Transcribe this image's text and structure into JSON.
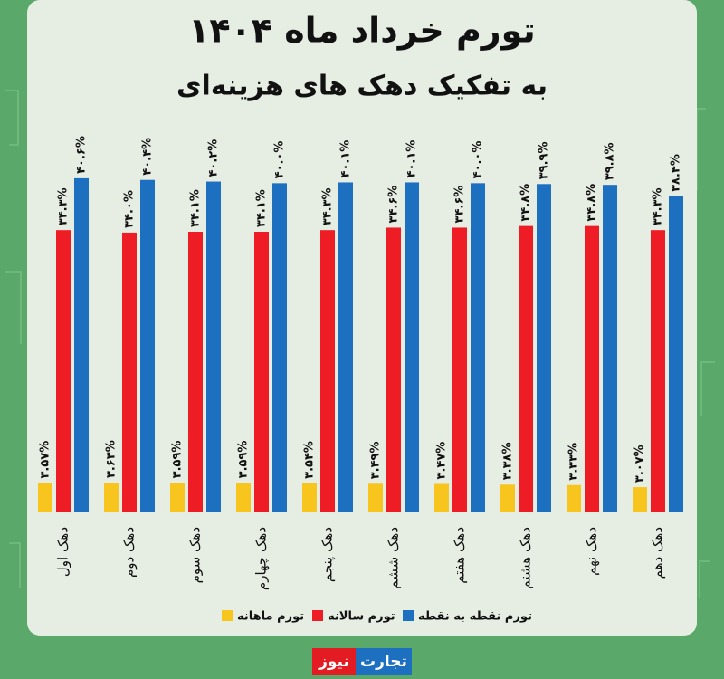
{
  "chart_data": {
    "type": "bar",
    "title": "تورم خرداد ماه ۱۴۰۴",
    "subtitle": "به تفکیک دهک های هزینه‌ای",
    "categories": [
      "دهک اول",
      "دهک دوم",
      "دهک سوم",
      "دهک چهارم",
      "دهک پنجم",
      "دهک ششم",
      "دهک هفتم",
      "دهک هشتم",
      "دهک نهم",
      "دهک دهم"
    ],
    "series": [
      {
        "name": "تورم ماهانه",
        "color": "#f7c51d",
        "values": [
          3.57,
          3.63,
          3.59,
          3.59,
          3.54,
          3.49,
          3.47,
          3.38,
          3.33,
          3.07
        ],
        "value_labels": [
          "۳.۵۷%",
          "۳.۶۳%",
          "۳.۵۹%",
          "۳.۵۹%",
          "۳.۵۴%",
          "۳.۴۹%",
          "۳.۴۷%",
          "۳.۳۸%",
          "۳.۳۳%",
          "۳.۰۷%"
        ]
      },
      {
        "name": "تورم سالانه",
        "color": "#ee1c24",
        "values": [
          34.3,
          34.0,
          34.1,
          34.1,
          34.3,
          34.6,
          34.6,
          34.8,
          34.8,
          34.3
        ],
        "value_labels": [
          "۳۴.۳%",
          "۳۴.۰%",
          "۳۴.۱%",
          "۳۴.۱%",
          "۳۴.۳%",
          "۳۴.۶%",
          "۳۴.۶%",
          "۳۴.۸%",
          "۳۴.۸%",
          "۳۴.۳%"
        ]
      },
      {
        "name": "تورم نقطه به نقطه",
        "color": "#1d6fc0",
        "values": [
          40.6,
          40.4,
          40.2,
          40.0,
          40.1,
          40.1,
          40.0,
          39.9,
          39.8,
          38.4
        ],
        "value_labels": [
          "۴۰.۶%",
          "۴۰.۴%",
          "۴۰.۲%",
          "۴۰.۰%",
          "۴۰.۱%",
          "۴۰.۱%",
          "۴۰.۰%",
          "۳۹.۹%",
          "۳۹.۸%",
          "۳۸.۴%"
        ]
      }
    ],
    "ylim": [
      0,
      44
    ],
    "brand": [
      "تجارت",
      "نیوز"
    ]
  }
}
